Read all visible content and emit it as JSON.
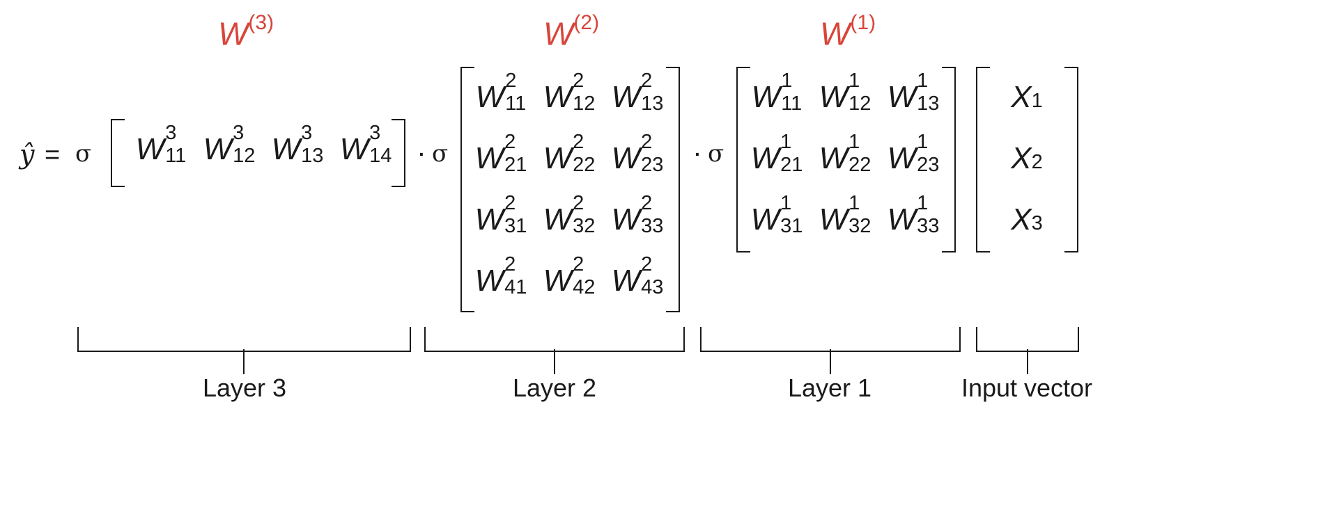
{
  "weights": {
    "w3": {
      "base": "W",
      "sup": "(3)"
    },
    "w2": {
      "base": "W",
      "sup": "(2)"
    },
    "w1": {
      "base": "W",
      "sup": "(1)"
    }
  },
  "equation": {
    "yhat": "ŷ",
    "equals": "=",
    "sigma": "σ",
    "dot": "·"
  },
  "layer3_matrix": [
    [
      {
        "b": "W",
        "sp": "3",
        "sb": "11"
      },
      {
        "b": "W",
        "sp": "3",
        "sb": "12"
      },
      {
        "b": "W",
        "sp": "3",
        "sb": "13"
      },
      {
        "b": "W",
        "sp": "3",
        "sb": "14"
      }
    ]
  ],
  "layer2_matrix": [
    [
      {
        "b": "W",
        "sp": "2",
        "sb": "11"
      },
      {
        "b": "W",
        "sp": "2",
        "sb": "12"
      },
      {
        "b": "W",
        "sp": "2",
        "sb": "13"
      }
    ],
    [
      {
        "b": "W",
        "sp": "2",
        "sb": "21"
      },
      {
        "b": "W",
        "sp": "2",
        "sb": "22"
      },
      {
        "b": "W",
        "sp": "2",
        "sb": "23"
      }
    ],
    [
      {
        "b": "W",
        "sp": "2",
        "sb": "31"
      },
      {
        "b": "W",
        "sp": "2",
        "sb": "32"
      },
      {
        "b": "W",
        "sp": "2",
        "sb": "33"
      }
    ],
    [
      {
        "b": "W",
        "sp": "2",
        "sb": "41"
      },
      {
        "b": "W",
        "sp": "2",
        "sb": "42"
      },
      {
        "b": "W",
        "sp": "2",
        "sb": "43"
      }
    ]
  ],
  "layer1_matrix": [
    [
      {
        "b": "W",
        "sp": "1",
        "sb": "11"
      },
      {
        "b": "W",
        "sp": "1",
        "sb": "12"
      },
      {
        "b": "W",
        "sp": "1",
        "sb": "13"
      }
    ],
    [
      {
        "b": "W",
        "sp": "1",
        "sb": "21"
      },
      {
        "b": "W",
        "sp": "1",
        "sb": "22"
      },
      {
        "b": "W",
        "sp": "1",
        "sb": "23"
      }
    ],
    [
      {
        "b": "W",
        "sp": "1",
        "sb": "31"
      },
      {
        "b": "W",
        "sp": "1",
        "sb": "32"
      },
      {
        "b": "W",
        "sp": "1",
        "sb": "33"
      }
    ]
  ],
  "input_vector": [
    {
      "b": "X",
      "sb": "1"
    },
    {
      "b": "X",
      "sb": "2"
    },
    {
      "b": "X",
      "sb": "3"
    }
  ],
  "labels": {
    "layer3": "Layer 3",
    "layer2": "Layer 2",
    "layer1": "Layer 1",
    "input": "Input vector"
  },
  "colors": {
    "weight_label": "#d8453a",
    "ink": "#1a1a1a"
  }
}
